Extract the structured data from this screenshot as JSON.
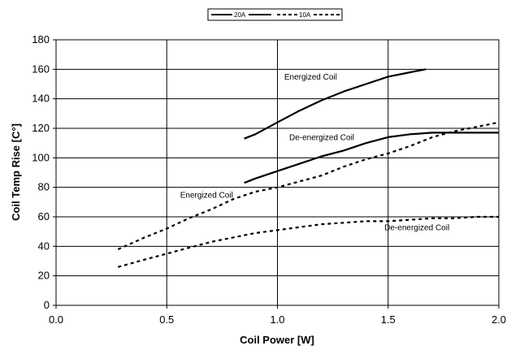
{
  "chart_data": {
    "type": "line",
    "xlabel": "Coil Power [W]",
    "ylabel": "Coil Temp Rise [C°]",
    "xlim": [
      0.0,
      2.0
    ],
    "ylim": [
      0,
      180
    ],
    "x_ticks": [
      "0.0",
      "0.5",
      "1.0",
      "1.5",
      "2.0"
    ],
    "y_ticks": [
      "0",
      "20",
      "40",
      "60",
      "80",
      "100",
      "120",
      "140",
      "160",
      "180"
    ],
    "grid": true,
    "legend_position": "top-center",
    "legend": [
      {
        "label": "20A",
        "style": "solid"
      },
      {
        "label": "10A",
        "style": "dashed"
      }
    ],
    "series": [
      {
        "name": "20A",
        "style": "solid",
        "color": "#000000",
        "x": [
          0.85,
          0.9,
          1.0,
          1.1,
          1.2,
          1.3,
          1.4,
          1.5,
          1.6,
          1.67
        ],
        "y": [
          113,
          116,
          124,
          132,
          139,
          145,
          150,
          155,
          158,
          160
        ]
      },
      {
        "name": "20A",
        "style": "solid",
        "color": "#000000",
        "x": [
          0.85,
          0.9,
          1.0,
          1.1,
          1.2,
          1.3,
          1.4,
          1.5,
          1.6,
          1.7,
          1.8,
          1.9,
          2.0
        ],
        "y": [
          83,
          86,
          91,
          96,
          101,
          105,
          110,
          114,
          116,
          117,
          117,
          117,
          117
        ]
      },
      {
        "name": "10A",
        "style": "dashed",
        "color": "#000000",
        "x": [
          0.28,
          0.4,
          0.5,
          0.6,
          0.7,
          0.8,
          0.9,
          1.0,
          1.1,
          1.2,
          1.3,
          1.4,
          1.5,
          1.6,
          1.7,
          1.8,
          1.9,
          2.0
        ],
        "y": [
          38,
          46,
          52,
          59,
          65,
          72,
          77,
          80,
          84,
          88,
          94,
          99,
          103,
          108,
          114,
          118,
          121,
          124
        ]
      },
      {
        "name": "10A",
        "style": "dashed",
        "color": "#000000",
        "x": [
          0.28,
          0.4,
          0.5,
          0.6,
          0.7,
          0.8,
          0.9,
          1.0,
          1.1,
          1.2,
          1.3,
          1.4,
          1.5,
          1.6,
          1.7,
          1.8,
          1.9,
          2.0
        ],
        "y": [
          26,
          31,
          35,
          39,
          43,
          46,
          49,
          51,
          53,
          55,
          56,
          57,
          57,
          58,
          59,
          59,
          60,
          60
        ]
      }
    ],
    "annotations": [
      {
        "text": "Energized Coil",
        "x": 1.15,
        "y": 153
      },
      {
        "text": "De-energized Coil",
        "x": 1.2,
        "y": 112
      },
      {
        "text": "Energized Coil",
        "x": 0.68,
        "y": 73
      },
      {
        "text": "De-energized Coil",
        "x": 1.63,
        "y": 51
      }
    ]
  }
}
